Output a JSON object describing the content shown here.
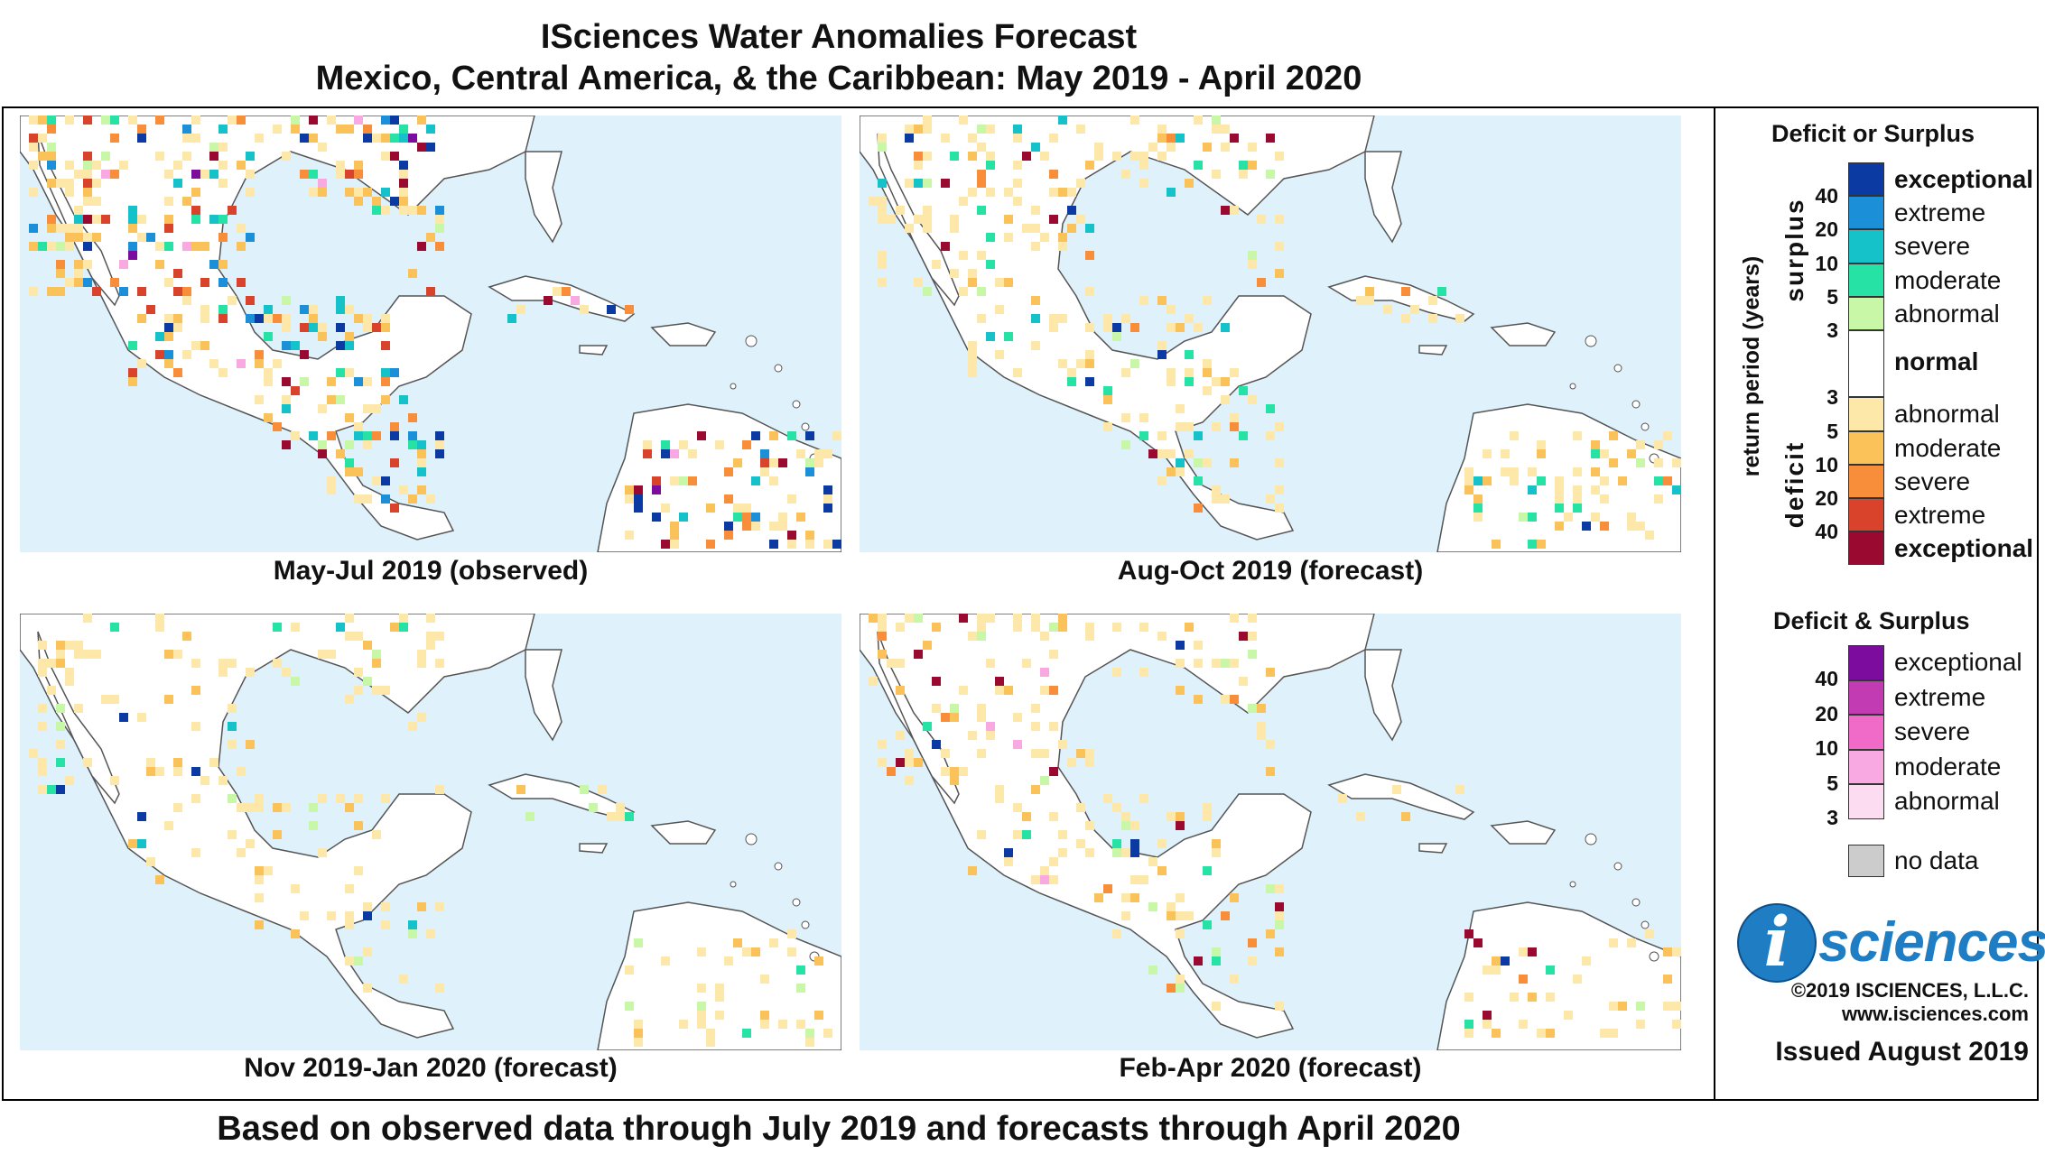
{
  "title": {
    "line1": "ISciences Water Anomalies Forecast",
    "line2": "Mexico, Central America, & the Caribbean: May 2019 - April 2020"
  },
  "maps": [
    {
      "caption": "May-Jul 2019 (observed)"
    },
    {
      "caption": "Aug-Oct 2019 (forecast)"
    },
    {
      "caption": "Nov 2019-Jan 2020 (forecast)"
    },
    {
      "caption": "Feb-Apr 2020 (forecast)"
    }
  ],
  "footer": "Based on observed data through July 2019 and forecasts through April 2020",
  "legend": {
    "section1_title": "Deficit or Surplus",
    "axis_label": "return period (years)",
    "surplus_label": "surplus",
    "deficit_label": "deficit",
    "surplus_ticks": [
      "40",
      "20",
      "10",
      "5",
      "3"
    ],
    "deficit_ticks": [
      "3",
      "5",
      "10",
      "20",
      "40"
    ],
    "surplus": [
      {
        "label": "exceptional",
        "color": "#0b3aa3",
        "bold": true
      },
      {
        "label": "extreme",
        "color": "#1b8fd8",
        "bold": false
      },
      {
        "label": "severe",
        "color": "#15c2c9",
        "bold": false
      },
      {
        "label": "moderate",
        "color": "#27e2a5",
        "bold": false
      },
      {
        "label": "abnormal",
        "color": "#c8f7a8",
        "bold": false
      }
    ],
    "normal": {
      "label": "normal",
      "color": "#ffffff"
    },
    "deficit": [
      {
        "label": "abnormal",
        "color": "#fde8a9",
        "bold": false
      },
      {
        "label": "moderate",
        "color": "#fbc25a",
        "bold": false
      },
      {
        "label": "severe",
        "color": "#f88d3a",
        "bold": false
      },
      {
        "label": "extreme",
        "color": "#d9422b",
        "bold": false
      },
      {
        "label": "exceptional",
        "color": "#9a0a30",
        "bold": true
      }
    ],
    "section2_title": "Deficit & Surplus",
    "both_ticks": [
      "40",
      "20",
      "10",
      "5",
      "3"
    ],
    "both": [
      {
        "label": "exceptional",
        "color": "#7b0c9e"
      },
      {
        "label": "extreme",
        "color": "#c23bb3"
      },
      {
        "label": "severe",
        "color": "#f06ac8"
      },
      {
        "label": "moderate",
        "color": "#f8a9e2"
      },
      {
        "label": "abnormal",
        "color": "#fcdcf0"
      }
    ],
    "nodata": {
      "label": "no data",
      "color": "#cccccc"
    }
  },
  "logo": {
    "i": "i",
    "text": "sciences",
    "copyright": "©2019 ISCIENCES, L.L.C.",
    "website": "www.isciences.com",
    "issued": "Issued August 2019"
  },
  "colors": {
    "ocean": "#dff2fb",
    "land": "#ffffff",
    "border": "#555555"
  }
}
